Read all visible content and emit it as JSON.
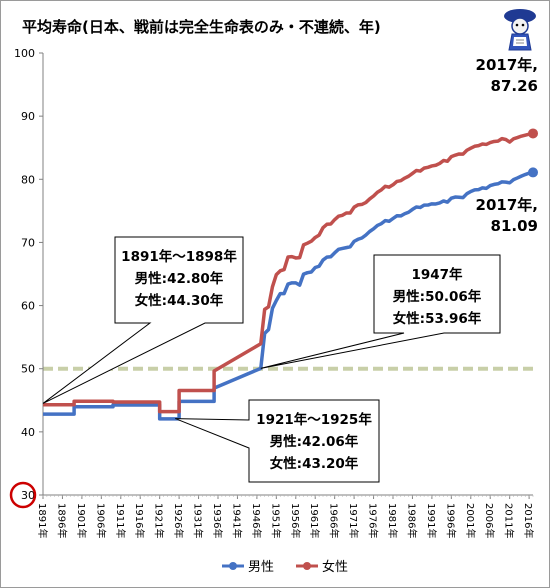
{
  "chart_data": {
    "type": "line",
    "title": "平均寿命(日本、戦前は完全生命表のみ・不連続、年)",
    "xlabel": "",
    "ylabel": "",
    "ylim": [
      30,
      100
    ],
    "yticks": [
      30,
      40,
      50,
      60,
      70,
      80,
      90,
      100
    ],
    "xlim": [
      1891,
      2017
    ],
    "xtick_labels": [
      "1891年",
      "1896年",
      "1901年",
      "1906年",
      "1911年",
      "1916年",
      "1921年",
      "1926年",
      "1931年",
      "1936年",
      "1941年",
      "1946年",
      "1951年",
      "1956年",
      "1961年",
      "1966年",
      "1971年",
      "1976年",
      "1981年",
      "1986年",
      "1991年",
      "1996年",
      "2001年",
      "2006年",
      "2011年",
      "2016年"
    ],
    "xtick_years": [
      1891,
      1896,
      1901,
      1906,
      1911,
      1916,
      1921,
      1926,
      1931,
      1936,
      1941,
      1946,
      1951,
      1956,
      1961,
      1966,
      1971,
      1976,
      1981,
      1986,
      1991,
      1996,
      2001,
      2006,
      2011,
      2016
    ],
    "grid": false,
    "reference_line": {
      "y": 50,
      "color": "#c8cfa8"
    },
    "legend": {
      "position": "bottom",
      "entries": [
        "男性",
        "女性"
      ]
    },
    "series": [
      {
        "name": "男性",
        "color": "#4472c4",
        "step": true,
        "points": [
          [
            1891,
            42.8
          ],
          [
            1899,
            43.97
          ],
          [
            1909,
            44.25
          ],
          [
            1921,
            42.06
          ],
          [
            1926,
            44.82
          ],
          [
            1935,
            46.92
          ],
          [
            1947,
            50.06
          ],
          [
            1948,
            55.6
          ],
          [
            1949,
            56.2
          ],
          [
            1950,
            59.57
          ],
          [
            1951,
            60.8
          ],
          [
            1952,
            61.9
          ],
          [
            1953,
            61.9
          ],
          [
            1954,
            63.41
          ],
          [
            1955,
            63.6
          ],
          [
            1956,
            63.59
          ],
          [
            1957,
            63.24
          ],
          [
            1958,
            64.98
          ],
          [
            1959,
            65.21
          ],
          [
            1960,
            65.32
          ],
          [
            1961,
            66.03
          ],
          [
            1962,
            66.23
          ],
          [
            1963,
            67.21
          ],
          [
            1964,
            67.67
          ],
          [
            1965,
            67.74
          ],
          [
            1966,
            68.35
          ],
          [
            1967,
            68.91
          ],
          [
            1968,
            69.05
          ],
          [
            1969,
            69.18
          ],
          [
            1970,
            69.31
          ],
          [
            1971,
            70.17
          ],
          [
            1972,
            70.5
          ],
          [
            1973,
            70.7
          ],
          [
            1974,
            71.16
          ],
          [
            1975,
            71.73
          ],
          [
            1976,
            72.15
          ],
          [
            1977,
            72.69
          ],
          [
            1978,
            72.97
          ],
          [
            1979,
            73.46
          ],
          [
            1980,
            73.35
          ],
          [
            1981,
            73.79
          ],
          [
            1982,
            74.22
          ],
          [
            1983,
            74.2
          ],
          [
            1984,
            74.54
          ],
          [
            1985,
            74.78
          ],
          [
            1986,
            75.23
          ],
          [
            1987,
            75.61
          ],
          [
            1988,
            75.54
          ],
          [
            1989,
            75.91
          ],
          [
            1990,
            75.92
          ],
          [
            1991,
            76.11
          ],
          [
            1992,
            76.09
          ],
          [
            1993,
            76.25
          ],
          [
            1994,
            76.57
          ],
          [
            1995,
            76.38
          ],
          [
            1996,
            77.01
          ],
          [
            1997,
            77.19
          ],
          [
            1998,
            77.16
          ],
          [
            1999,
            77.1
          ],
          [
            2000,
            77.72
          ],
          [
            2001,
            78.07
          ],
          [
            2002,
            78.32
          ],
          [
            2003,
            78.36
          ],
          [
            2004,
            78.64
          ],
          [
            2005,
            78.56
          ],
          [
            2006,
            79.0
          ],
          [
            2007,
            79.19
          ],
          [
            2008,
            79.29
          ],
          [
            2009,
            79.59
          ],
          [
            2010,
            79.55
          ],
          [
            2011,
            79.44
          ],
          [
            2012,
            79.94
          ],
          [
            2013,
            80.21
          ],
          [
            2014,
            80.5
          ],
          [
            2015,
            80.75
          ],
          [
            2016,
            80.98
          ],
          [
            2017,
            81.09
          ]
        ]
      },
      {
        "name": "女性",
        "color": "#c0504d",
        "step": true,
        "points": [
          [
            1891,
            44.3
          ],
          [
            1899,
            44.85
          ],
          [
            1909,
            44.73
          ],
          [
            1921,
            43.2
          ],
          [
            1926,
            46.54
          ],
          [
            1935,
            49.63
          ],
          [
            1947,
            53.96
          ],
          [
            1948,
            59.4
          ],
          [
            1949,
            59.8
          ],
          [
            1950,
            62.97
          ],
          [
            1951,
            64.9
          ],
          [
            1952,
            65.5
          ],
          [
            1953,
            65.7
          ],
          [
            1954,
            67.69
          ],
          [
            1955,
            67.75
          ],
          [
            1956,
            67.54
          ],
          [
            1957,
            67.6
          ],
          [
            1958,
            69.61
          ],
          [
            1959,
            69.88
          ],
          [
            1960,
            70.19
          ],
          [
            1961,
            70.79
          ],
          [
            1962,
            71.16
          ],
          [
            1963,
            72.34
          ],
          [
            1964,
            72.87
          ],
          [
            1965,
            72.92
          ],
          [
            1966,
            73.61
          ],
          [
            1967,
            74.15
          ],
          [
            1968,
            74.3
          ],
          [
            1969,
            74.67
          ],
          [
            1970,
            74.66
          ],
          [
            1971,
            75.58
          ],
          [
            1972,
            75.94
          ],
          [
            1973,
            76.02
          ],
          [
            1974,
            76.31
          ],
          [
            1975,
            76.89
          ],
          [
            1976,
            77.35
          ],
          [
            1977,
            77.95
          ],
          [
            1978,
            78.33
          ],
          [
            1979,
            78.89
          ],
          [
            1980,
            78.76
          ],
          [
            1981,
            79.13
          ],
          [
            1982,
            79.66
          ],
          [
            1983,
            79.78
          ],
          [
            1984,
            80.18
          ],
          [
            1985,
            80.48
          ],
          [
            1986,
            80.93
          ],
          [
            1987,
            81.39
          ],
          [
            1988,
            81.3
          ],
          [
            1989,
            81.77
          ],
          [
            1990,
            81.9
          ],
          [
            1991,
            82.11
          ],
          [
            1992,
            82.22
          ],
          [
            1993,
            82.51
          ],
          [
            1994,
            82.98
          ],
          [
            1995,
            82.85
          ],
          [
            1996,
            83.59
          ],
          [
            1997,
            83.82
          ],
          [
            1998,
            84.01
          ],
          [
            1999,
            83.99
          ],
          [
            2000,
            84.6
          ],
          [
            2001,
            84.93
          ],
          [
            2002,
            85.23
          ],
          [
            2003,
            85.33
          ],
          [
            2004,
            85.59
          ],
          [
            2005,
            85.52
          ],
          [
            2006,
            85.81
          ],
          [
            2007,
            85.99
          ],
          [
            2008,
            86.05
          ],
          [
            2009,
            86.44
          ],
          [
            2010,
            86.3
          ],
          [
            2011,
            85.9
          ],
          [
            2012,
            86.41
          ],
          [
            2013,
            86.61
          ],
          [
            2014,
            86.83
          ],
          [
            2015,
            86.99
          ],
          [
            2016,
            87.14
          ],
          [
            2017,
            87.26
          ]
        ]
      }
    ],
    "annotations": [
      {
        "lines": [
          "1891年～1898年",
          "男性:42.80年",
          "女性:44.30年"
        ],
        "target": [
          1891,
          44.5
        ]
      },
      {
        "lines": [
          "1947年",
          "男性:50.06年",
          "女性:53.96年"
        ],
        "target": [
          1947,
          50.06
        ]
      },
      {
        "lines": [
          "1921年～1925年",
          "男性:42.06年",
          "女性:43.20年"
        ],
        "target": [
          1925,
          42.1
        ]
      }
    ],
    "end_labels": [
      {
        "text": "2017年,\n87.26",
        "series": "女性"
      },
      {
        "text": "2017年,\n81.09",
        "series": "男性"
      }
    ],
    "highlighted_tick": 30,
    "highlight_color": "#cc0000",
    "mascot_icon": "character-icon"
  }
}
